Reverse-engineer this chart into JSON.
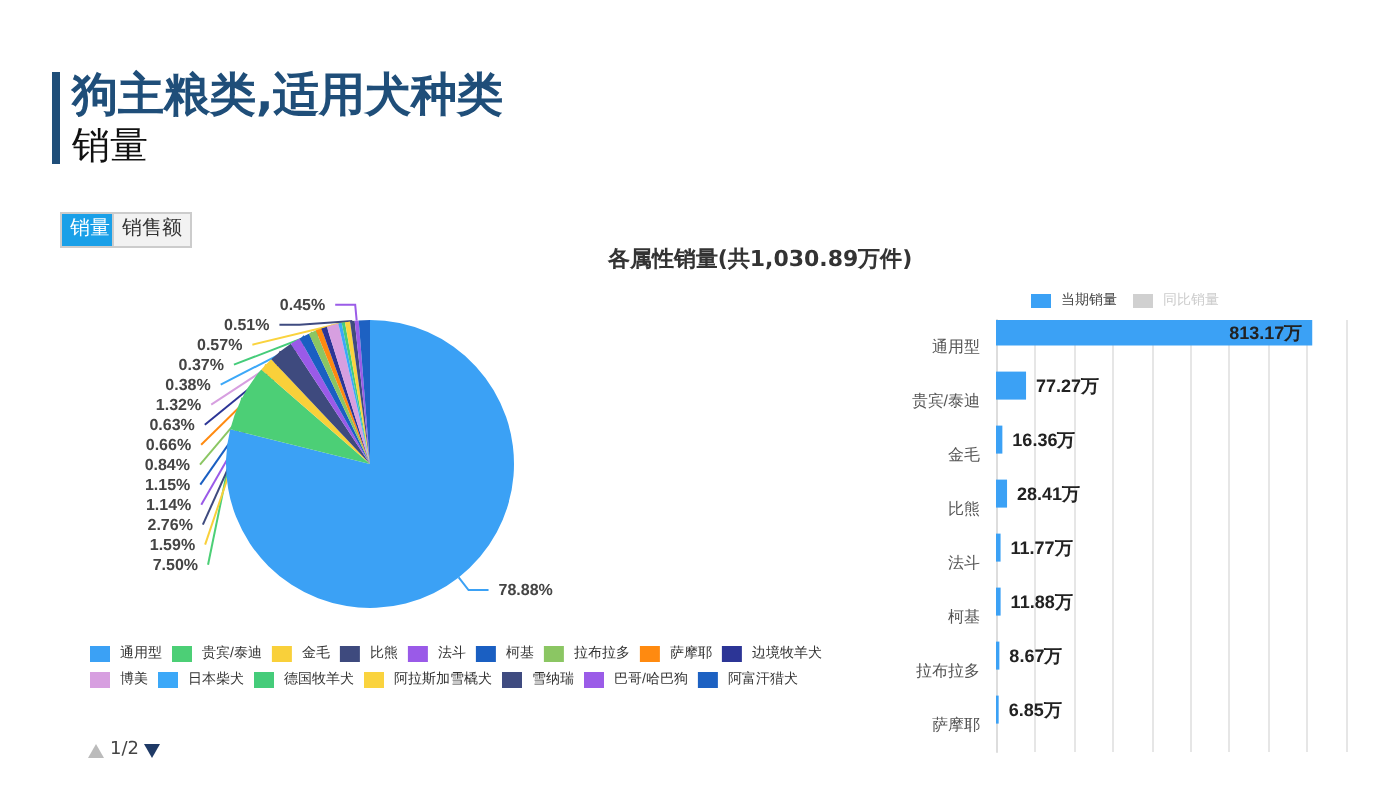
{
  "chart_data": [
    {
      "type": "pie",
      "title": "狗主粮类,适用犬种类",
      "subtitle": "销量",
      "annotations": [
        "销量",
        "销售额",
        "各属性销量(共1,030.89万件)",
        "1/2"
      ],
      "categories": [
        "通用型",
        "贵宾/泰迪",
        "金毛",
        "比熊",
        "法斗",
        "柯基",
        "拉布拉多",
        "萨摩耶",
        "边境牧羊犬",
        "博美",
        "日本柴犬",
        "德国牧羊犬",
        "阿拉斯加雪橇犬",
        "雪纳瑞",
        "巴哥/哈巴狗",
        "阿富汗猎犬"
      ],
      "values": [
        78.88,
        7.5,
        1.59,
        2.76,
        1.14,
        1.15,
        0.84,
        0.66,
        0.63,
        1.32,
        0.38,
        0.37,
        0.57,
        0.51,
        0.45,
        1.25
      ],
      "value_labels": [
        "78.88%",
        "7.50%",
        "1.59%",
        "2.76%",
        "1.14%",
        "1.15%",
        "0.84%",
        "0.66%",
        "0.63%",
        "1.32%",
        "0.38%",
        "0.37%",
        "0.57%",
        "0.51%",
        "0.45%",
        null
      ],
      "colors": [
        "#3ba1f5",
        "#4ccf76",
        "#f9d03a",
        "#3e4a7e",
        "#9a5ae8",
        "#1a5fc2",
        "#8bc663",
        "#ff8a10",
        "#2c3596",
        "#d79fe0",
        "#3ca8f8",
        "#45cc7a",
        "#fad33e",
        "#3f4b80",
        "#9b5ce8",
        "#1d61c2"
      ],
      "legend": "bottom"
    },
    {
      "type": "bar",
      "orientation": "horizontal",
      "categories": [
        "通用型",
        "贵宾/泰迪",
        "金毛",
        "比熊",
        "法斗",
        "柯基",
        "拉布拉多",
        "萨摩耶"
      ],
      "series": [
        {
          "name": "当期销量",
          "color": "#3ba1f5",
          "values": [
            813.17,
            77.27,
            16.36,
            28.41,
            11.77,
            11.88,
            8.67,
            6.85
          ],
          "value_labels": [
            "813.17万",
            "77.27万",
            "16.36万",
            "28.41万",
            "11.77万",
            "11.88万",
            "8.67万",
            "6.85万"
          ]
        },
        {
          "name": "同比销量",
          "color": "#d0d0d0",
          "values": [
            null,
            null,
            null,
            null,
            null,
            null,
            null,
            null
          ]
        }
      ],
      "xlim": [
        0,
        900
      ],
      "xticks": [
        {
          "value": 0,
          "label": null
        },
        {
          "value": 100,
          "label": null
        },
        {
          "value": 200,
          "label": null
        },
        {
          "value": 300,
          "label": null
        },
        {
          "value": 400,
          "label": null
        },
        {
          "value": 500,
          "label": null
        },
        {
          "value": 600,
          "label": null
        },
        {
          "value": 700,
          "label": null
        },
        {
          "value": 800,
          "label": null
        },
        {
          "value": 900,
          "label": null
        }
      ],
      "tick_labels": "y",
      "grid": "x",
      "legend": "top"
    }
  ]
}
